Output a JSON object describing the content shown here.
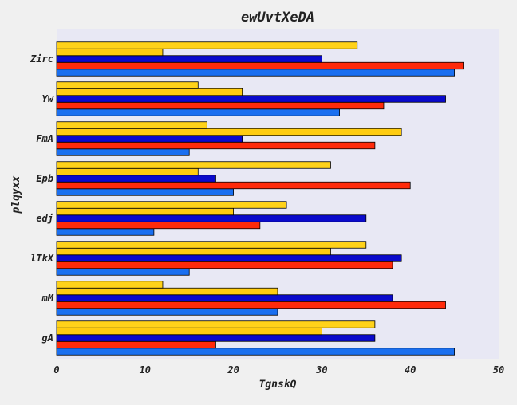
{
  "chart_data": {
    "type": "bar",
    "orientation": "horizontal",
    "title": "ewUvtXeDA",
    "xlabel": "TgnskQ",
    "ylabel": "plqyxx",
    "categories": [
      "gA",
      "mM",
      "lTkX",
      "edj",
      "Epb",
      "FmA",
      "Yw",
      "Zirc"
    ],
    "xlim": [
      0,
      50
    ],
    "xticks": [
      "0",
      "10",
      "20",
      "30",
      "40",
      "50"
    ],
    "grid": false,
    "legend": "none",
    "series": [
      {
        "color": "#1a6ff0",
        "values": [
          45,
          25,
          15,
          11,
          20,
          15,
          32,
          45
        ]
      },
      {
        "color": "#ff2a0a",
        "values": [
          18,
          44,
          38,
          23,
          40,
          36,
          37,
          46
        ]
      },
      {
        "color": "#0a0acc",
        "values": [
          36,
          38,
          39,
          35,
          18,
          21,
          44,
          30
        ]
      },
      {
        "color": "#ffcc10",
        "values": [
          30,
          25,
          31,
          20,
          16,
          39,
          21,
          12
        ]
      },
      {
        "color": "#ffd21a",
        "values": [
          36,
          12,
          35,
          26,
          31,
          17,
          16,
          34
        ]
      }
    ]
  },
  "colors": {
    "page_background": "#f0f0f0",
    "plot_background": "#e8e8f4",
    "bar_outline": "#000000"
  }
}
